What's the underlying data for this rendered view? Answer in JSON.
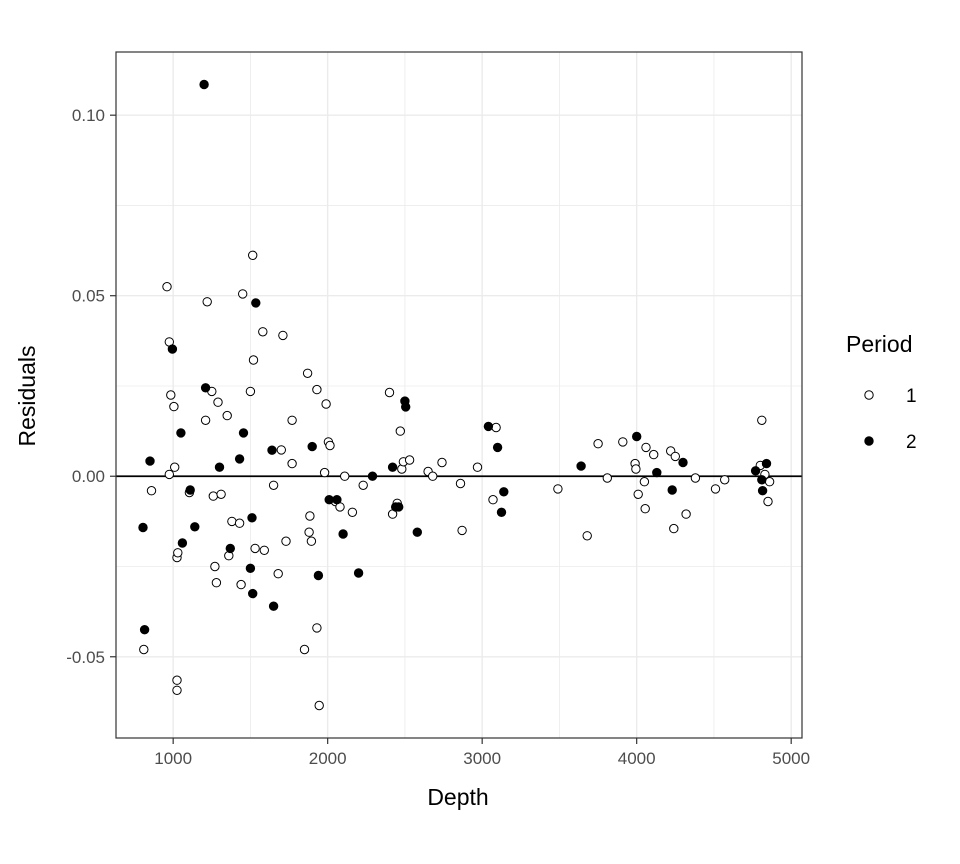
{
  "chart_data": {
    "type": "scatter",
    "xlabel": "Depth",
    "ylabel": "Residuals",
    "xlim": [
      630,
      5070
    ],
    "ylim": [
      -0.0725,
      0.1175
    ],
    "xticks": [
      1000,
      2000,
      3000,
      4000,
      5000
    ],
    "xtick_labels": [
      "1000",
      "2000",
      "3000",
      "4000",
      "5000"
    ],
    "yticks": [
      -0.05,
      0.0,
      0.05,
      0.1
    ],
    "ytick_labels": [
      "-0.05",
      "0.00",
      "0.05",
      "0.10"
    ],
    "grid": true,
    "reference_line_y": 0,
    "legend": {
      "title": "Period",
      "placement": "right"
    },
    "series": [
      {
        "name": "1",
        "marker": "open-circle",
        "points": [
          [
            810,
            -0.048
          ],
          [
            860,
            -0.004
          ],
          [
            960,
            0.0525
          ],
          [
            975,
            0.0372
          ],
          [
            985,
            0.0225
          ],
          [
            975,
            0.0005
          ],
          [
            1005,
            0.0193
          ],
          [
            1010,
            0.0025
          ],
          [
            1025,
            -0.0225
          ],
          [
            1030,
            -0.0212
          ],
          [
            1025,
            -0.0565
          ],
          [
            1025,
            -0.0593
          ],
          [
            1105,
            -0.0045
          ],
          [
            1210,
            0.0155
          ],
          [
            1220,
            0.0483
          ],
          [
            1250,
            0.0235
          ],
          [
            1260,
            -0.0055
          ],
          [
            1270,
            -0.025
          ],
          [
            1280,
            -0.0295
          ],
          [
            1290,
            0.0205
          ],
          [
            1310,
            -0.005
          ],
          [
            1350,
            0.0168
          ],
          [
            1360,
            -0.022
          ],
          [
            1380,
            -0.0125
          ],
          [
            1430,
            -0.013
          ],
          [
            1440,
            -0.03
          ],
          [
            1450,
            0.0505
          ],
          [
            1500,
            0.0235
          ],
          [
            1515,
            0.0612
          ],
          [
            1520,
            0.0322
          ],
          [
            1530,
            -0.02
          ],
          [
            1580,
            0.04
          ],
          [
            1590,
            -0.0205
          ],
          [
            1650,
            -0.0025
          ],
          [
            1680,
            -0.027
          ],
          [
            1700,
            0.0073
          ],
          [
            1710,
            0.039
          ],
          [
            1730,
            -0.018
          ],
          [
            1770,
            0.0155
          ],
          [
            1770,
            0.0035
          ],
          [
            1850,
            -0.048
          ],
          [
            1870,
            0.0285
          ],
          [
            1880,
            -0.0155
          ],
          [
            1885,
            -0.011
          ],
          [
            1895,
            -0.018
          ],
          [
            1930,
            -0.042
          ],
          [
            1930,
            0.024
          ],
          [
            1945,
            -0.0635
          ],
          [
            1980,
            0.001
          ],
          [
            1990,
            0.02
          ],
          [
            2005,
            0.0095
          ],
          [
            2015,
            0.0085
          ],
          [
            2050,
            -0.007
          ],
          [
            2080,
            -0.0085
          ],
          [
            2110,
            0.0
          ],
          [
            2160,
            -0.01
          ],
          [
            2230,
            -0.0025
          ],
          [
            2400,
            0.0232
          ],
          [
            2420,
            -0.0105
          ],
          [
            2450,
            -0.0075
          ],
          [
            2470,
            0.0125
          ],
          [
            2480,
            0.002
          ],
          [
            2490,
            0.004
          ],
          [
            2530,
            0.0045
          ],
          [
            2650,
            0.0013
          ],
          [
            2680,
            0.0
          ],
          [
            2740,
            0.0038
          ],
          [
            2860,
            -0.002
          ],
          [
            2870,
            -0.015
          ],
          [
            2970,
            0.0025
          ],
          [
            3070,
            -0.0065
          ],
          [
            3090,
            0.0135
          ],
          [
            3490,
            -0.0035
          ],
          [
            3680,
            -0.0165
          ],
          [
            3750,
            0.009
          ],
          [
            3810,
            -0.0005
          ],
          [
            3910,
            0.0095
          ],
          [
            3990,
            0.0035
          ],
          [
            3995,
            0.002
          ],
          [
            4010,
            -0.005
          ],
          [
            4050,
            -0.0015
          ],
          [
            4055,
            -0.009
          ],
          [
            4060,
            0.008
          ],
          [
            4110,
            0.006
          ],
          [
            4220,
            0.007
          ],
          [
            4240,
            -0.0145
          ],
          [
            4250,
            0.0055
          ],
          [
            4320,
            -0.0105
          ],
          [
            4380,
            -0.0005
          ],
          [
            4510,
            -0.0035
          ],
          [
            4570,
            -0.001
          ],
          [
            4800,
            0.003
          ],
          [
            4810,
            0.0155
          ],
          [
            4830,
            0.0005
          ],
          [
            4850,
            -0.007
          ],
          [
            4860,
            -0.0015
          ]
        ]
      },
      {
        "name": "2",
        "marker": "filled-circle",
        "points": [
          [
            805,
            -0.0142
          ],
          [
            815,
            -0.0425
          ],
          [
            850,
            0.0042
          ],
          [
            995,
            0.0352
          ],
          [
            1050,
            0.012
          ],
          [
            1060,
            -0.0185
          ],
          [
            1110,
            -0.0038
          ],
          [
            1140,
            -0.014
          ],
          [
            1200,
            0.1085
          ],
          [
            1210,
            0.0245
          ],
          [
            1300,
            0.0025
          ],
          [
            1370,
            -0.02
          ],
          [
            1430,
            0.0048
          ],
          [
            1455,
            0.012
          ],
          [
            1500,
            -0.0255
          ],
          [
            1510,
            -0.0115
          ],
          [
            1515,
            -0.0325
          ],
          [
            1535,
            0.048
          ],
          [
            1640,
            0.0072
          ],
          [
            1650,
            -0.036
          ],
          [
            1900,
            0.0082
          ],
          [
            1940,
            -0.0275
          ],
          [
            2010,
            -0.0065
          ],
          [
            2060,
            -0.0065
          ],
          [
            2100,
            -0.016
          ],
          [
            2200,
            -0.0268
          ],
          [
            2290,
            0.0
          ],
          [
            2420,
            0.0025
          ],
          [
            2440,
            -0.0085
          ],
          [
            2460,
            -0.0085
          ],
          [
            2500,
            0.0208
          ],
          [
            2505,
            0.0192
          ],
          [
            2580,
            -0.0155
          ],
          [
            3040,
            0.0138
          ],
          [
            3100,
            0.008
          ],
          [
            3125,
            -0.01
          ],
          [
            3140,
            -0.0043
          ],
          [
            3640,
            0.0028
          ],
          [
            4000,
            0.011
          ],
          [
            4130,
            0.001
          ],
          [
            4230,
            -0.0038
          ],
          [
            4300,
            0.0038
          ],
          [
            4770,
            0.0015
          ],
          [
            4810,
            -0.001
          ],
          [
            4815,
            -0.004
          ],
          [
            4840,
            0.0035
          ]
        ]
      }
    ]
  }
}
